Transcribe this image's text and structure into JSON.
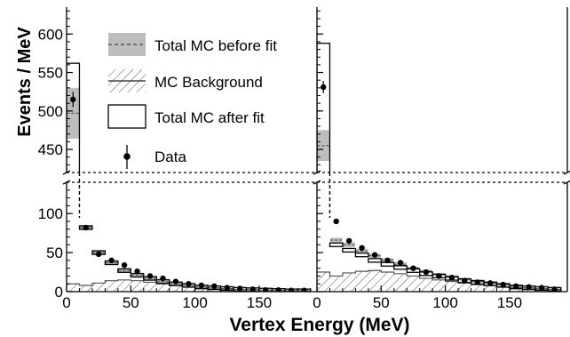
{
  "chart_data": {
    "type": "bar",
    "ylabel": "Events / MeV",
    "xlabel": "Vertex Energy (MeV)",
    "x_ticks": [
      "0",
      "50",
      "100",
      "150"
    ],
    "x_range": [
      0,
      195
    ],
    "y_upper": {
      "range": [
        420,
        635
      ],
      "ticks": [
        "450",
        "500",
        "550",
        "600"
      ]
    },
    "y_lower": {
      "range": [
        0,
        140
      ],
      "ticks": [
        "0",
        "50",
        "100"
      ]
    },
    "bin_edges": [
      0,
      10,
      20,
      30,
      40,
      50,
      60,
      70,
      80,
      90,
      100,
      110,
      120,
      130,
      140,
      150,
      160,
      170,
      180,
      190
    ],
    "legend": {
      "position": "top-left",
      "items": [
        "Total MC before fit",
        "MC Background",
        "Total MC after fit",
        "Data"
      ]
    },
    "colors": {
      "before_fit_band": "#bdbdbd",
      "line": "#000000",
      "hatch": "#555555"
    },
    "panels": [
      {
        "id": "left",
        "total_after_fit": [
          562,
          82,
          50,
          37,
          27,
          21,
          17,
          13,
          10,
          8,
          6,
          5,
          4,
          3,
          2.5,
          2,
          1.5,
          1,
          1
        ],
        "before_fit": [
          497,
          82,
          50,
          37,
          27,
          21,
          17,
          13,
          10,
          8,
          6,
          5,
          4,
          3,
          2.5,
          2,
          1.5,
          1,
          1
        ],
        "before_fit_err": [
          33,
          3,
          3,
          3,
          3,
          2,
          2,
          2,
          1.5,
          1.5,
          1,
          1,
          1,
          1,
          1,
          1,
          1,
          1,
          1
        ],
        "background": [
          10,
          8,
          11,
          14,
          15,
          14,
          12,
          10,
          8,
          6,
          5,
          4,
          3,
          2.5,
          2,
          1.5,
          1.2,
          1,
          0.8
        ],
        "data_x": [
          5,
          15,
          25,
          35,
          45,
          55,
          65,
          75,
          85,
          95,
          105,
          115,
          125,
          135,
          145,
          155,
          165,
          175,
          185
        ],
        "data_y": [
          515,
          82,
          48,
          40,
          34,
          26,
          20,
          17,
          13,
          10,
          8,
          7,
          5,
          4,
          3,
          2,
          2,
          1.5,
          1.5
        ],
        "data_err": [
          10,
          3,
          3,
          3,
          2,
          2,
          2,
          2,
          1.5,
          1.5,
          1,
          1,
          1,
          1,
          1,
          1,
          1,
          1,
          1
        ]
      },
      {
        "id": "right",
        "total_after_fit": [
          588,
          60,
          53,
          47,
          40,
          35,
          31,
          27,
          23,
          20,
          17,
          14,
          12,
          10,
          8,
          6,
          5,
          4,
          3
        ],
        "before_fit": [
          455,
          66,
          60,
          52,
          46,
          40,
          35,
          30,
          26,
          22,
          19,
          16,
          13,
          11,
          9,
          7,
          5,
          4,
          3
        ],
        "before_fit_err": [
          20,
          3,
          3,
          3,
          3,
          3,
          3,
          2,
          2,
          2,
          2,
          2,
          1.5,
          1.5,
          1.5,
          1,
          1,
          1,
          1
        ],
        "background": [
          25,
          20,
          24,
          26,
          27,
          25,
          23,
          20,
          17,
          15,
          13,
          11,
          9,
          8,
          6,
          5,
          4,
          3,
          2
        ],
        "data_x": [
          5,
          15,
          25,
          35,
          45,
          55,
          65,
          75,
          85,
          95,
          105,
          115,
          125,
          135,
          145,
          155,
          165,
          175,
          185
        ],
        "data_y": [
          531,
          90,
          65,
          56,
          47,
          40,
          37,
          30,
          25,
          20,
          18,
          14,
          12,
          11,
          9,
          7,
          6,
          5,
          3
        ],
        "data_err": [
          8,
          3,
          3,
          2.5,
          2.5,
          2,
          2,
          2,
          1.5,
          1.5,
          1.5,
          1,
          1,
          1,
          1,
          1,
          1,
          1,
          1
        ]
      }
    ]
  }
}
